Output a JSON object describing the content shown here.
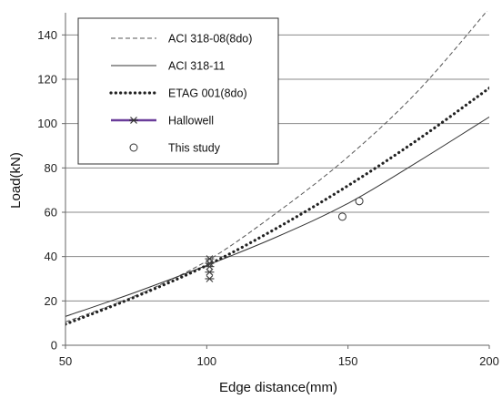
{
  "chart_data": {
    "type": "line",
    "xlabel": "Edge distance(mm)",
    "ylabel": "Load(kN)",
    "xlim": [
      50,
      200
    ],
    "ylim": [
      0,
      150
    ],
    "x_ticks": [
      50,
      100,
      150,
      200
    ],
    "y_ticks": [
      0,
      20,
      40,
      60,
      80,
      100,
      120,
      140
    ],
    "grid": "horizontal",
    "legend_position": "top-left",
    "series": [
      {
        "name": "ACI 318-08(8do)",
        "style": "dashed",
        "color": "#555555",
        "x": [
          50,
          75,
          100,
          125,
          150,
          175,
          200
        ],
        "y": [
          10.5,
          22.5,
          38,
          60,
          85,
          115,
          152
        ]
      },
      {
        "name": "ACI 318-11",
        "style": "solid",
        "color": "#333333",
        "x": [
          50,
          75,
          100,
          125,
          150,
          175,
          200
        ],
        "y": [
          13,
          24,
          36,
          49,
          64,
          83,
          103
        ]
      },
      {
        "name": "ETAG 001(8do)",
        "style": "dotted",
        "color": "#222222",
        "x": [
          50,
          75,
          100,
          125,
          150,
          175,
          200
        ],
        "y": [
          9.5,
          22,
          36,
          53,
          72,
          93,
          116
        ]
      },
      {
        "name": "Hallowell",
        "style": "asterisk-line",
        "color": "#6a3d9a",
        "x": [
          101,
          101,
          101,
          101,
          101
        ],
        "y": [
          30,
          33,
          35.5,
          37,
          39
        ]
      },
      {
        "name": "This study",
        "style": "open-circle",
        "color": "#333333",
        "x": [
          148,
          154
        ],
        "y": [
          58,
          65
        ]
      }
    ]
  }
}
